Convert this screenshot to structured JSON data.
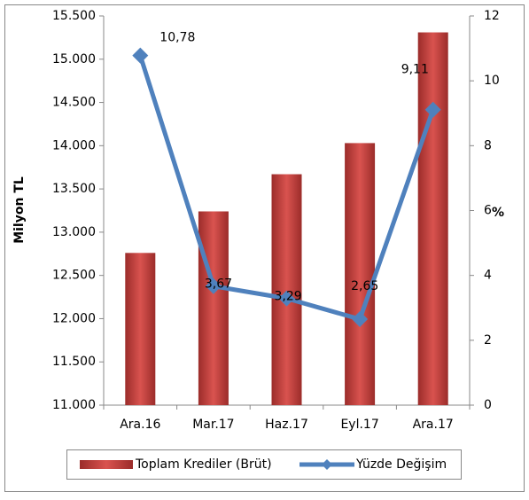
{
  "chart_data": {
    "type": "bar-line",
    "categories": [
      "Ara.16",
      "Mar.17",
      "Haz.17",
      "Eyl.17",
      "Ara.17"
    ],
    "ylabel": "Milyon TL",
    "y2label": "%",
    "ylim": [
      11000,
      15500
    ],
    "yticks": [
      {
        "value": 11000,
        "label": "11.000"
      },
      {
        "value": 11500,
        "label": "11.500"
      },
      {
        "value": 12000,
        "label": "12.000"
      },
      {
        "value": 12500,
        "label": "12.500"
      },
      {
        "value": 13000,
        "label": "13.000"
      },
      {
        "value": 13500,
        "label": "13.500"
      },
      {
        "value": 14000,
        "label": "14.000"
      },
      {
        "value": 14500,
        "label": "14.500"
      },
      {
        "value": 15000,
        "label": "15.000"
      },
      {
        "value": 15500,
        "label": "15.500"
      }
    ],
    "y2lim": [
      0,
      12
    ],
    "y2ticks": [
      0,
      2,
      4,
      6,
      8,
      10,
      12
    ],
    "legend": "bottom",
    "series": [
      {
        "name": "Toplam Krediler (Brüt)",
        "color": "#c0504d",
        "type": "bar",
        "values": [
          12760,
          13240,
          13670,
          14030,
          15310
        ]
      },
      {
        "name": "Yüzde Değişim",
        "color": "#4f81bd",
        "type": "line",
        "axis": "y2",
        "values": [
          10.78,
          3.67,
          3.29,
          2.65,
          9.11
        ],
        "value_labels": [
          "10,78",
          "3,67",
          "3,29",
          "2,65",
          "9,11"
        ]
      }
    ]
  }
}
